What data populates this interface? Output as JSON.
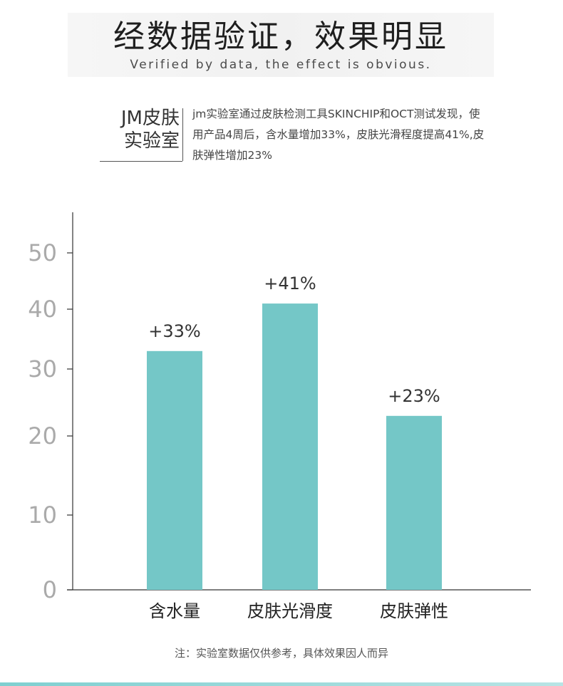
{
  "header": {
    "title": "经数据验证，效果明显",
    "subtitle": "Verified by data, the effect is obvious."
  },
  "lab": {
    "name_line1": "JM皮肤",
    "name_line2": "实验室",
    "description": "jm实验室通过皮肤检测工具SKINCHIP和OCT测试发现，使用产品4周后，含水量增加33%，皮肤光滑程度提高41%,皮肤弹性增加23%"
  },
  "chart_data": {
    "type": "bar",
    "categories": [
      "含水量",
      "皮肤光滑度",
      "皮肤弹性"
    ],
    "values": [
      33,
      41,
      23
    ],
    "data_labels": [
      "+33%",
      "+41%",
      "+23%"
    ],
    "y_ticks": [
      0,
      10,
      20,
      30,
      40,
      50
    ],
    "y_tick_labels": [
      "0",
      "10",
      "20",
      "30",
      "40",
      "50"
    ],
    "ylim": [
      0,
      55
    ],
    "grid": false,
    "bar_color": "#74c7c7",
    "axis_color": "#333333",
    "tick_label_color": "#aaaaaa"
  },
  "footnote": "注：实验室数据仅供参考，具体效果因人而异",
  "colors": {
    "accent": "#74c7c7",
    "bottom_bar": "#9fdadb"
  }
}
